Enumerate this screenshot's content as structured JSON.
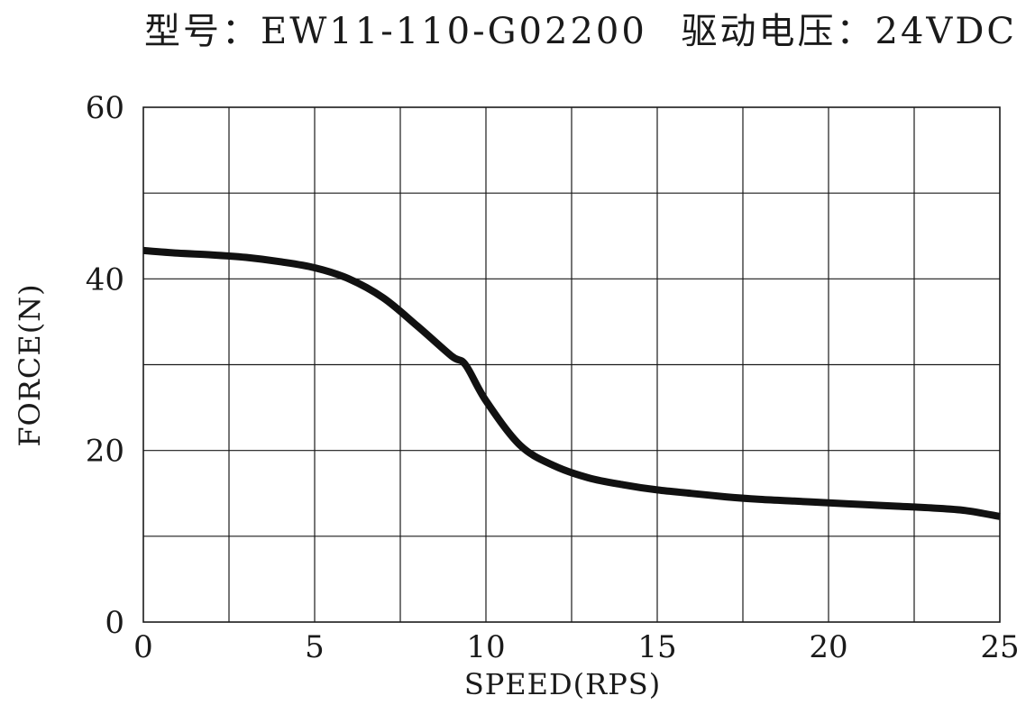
{
  "chart_data": {
    "type": "line",
    "title_model": "型号：EW11-110-G02200",
    "title_voltage": "驱动电压：24VDC",
    "xlabel": "SPEED(RPS)",
    "ylabel": "FORCE(N)",
    "xlim": [
      0,
      25
    ],
    "ylim": [
      0,
      60
    ],
    "x_ticks": [
      "0",
      "5",
      "10",
      "15",
      "20",
      "25"
    ],
    "y_ticks": [
      "0",
      "20",
      "40",
      "60"
    ],
    "grid": true,
    "grid_x_step": 2.5,
    "grid_y_step": 10,
    "line_color": "#111111",
    "series": [
      {
        "x": [
          0,
          1,
          2,
          3,
          4,
          5,
          6,
          7,
          8,
          9,
          9.4,
          10,
          11,
          12,
          13,
          14,
          15,
          16,
          17,
          18,
          19,
          20,
          21,
          22,
          23,
          24,
          25
        ],
        "y": [
          43.3,
          43.0,
          42.8,
          42.5,
          42.0,
          41.3,
          40.0,
          37.8,
          34.5,
          31.0,
          30.0,
          25.8,
          20.6,
          18.2,
          16.8,
          16.0,
          15.4,
          15.0,
          14.6,
          14.3,
          14.1,
          13.9,
          13.7,
          13.5,
          13.3,
          13.0,
          12.3
        ]
      }
    ]
  }
}
